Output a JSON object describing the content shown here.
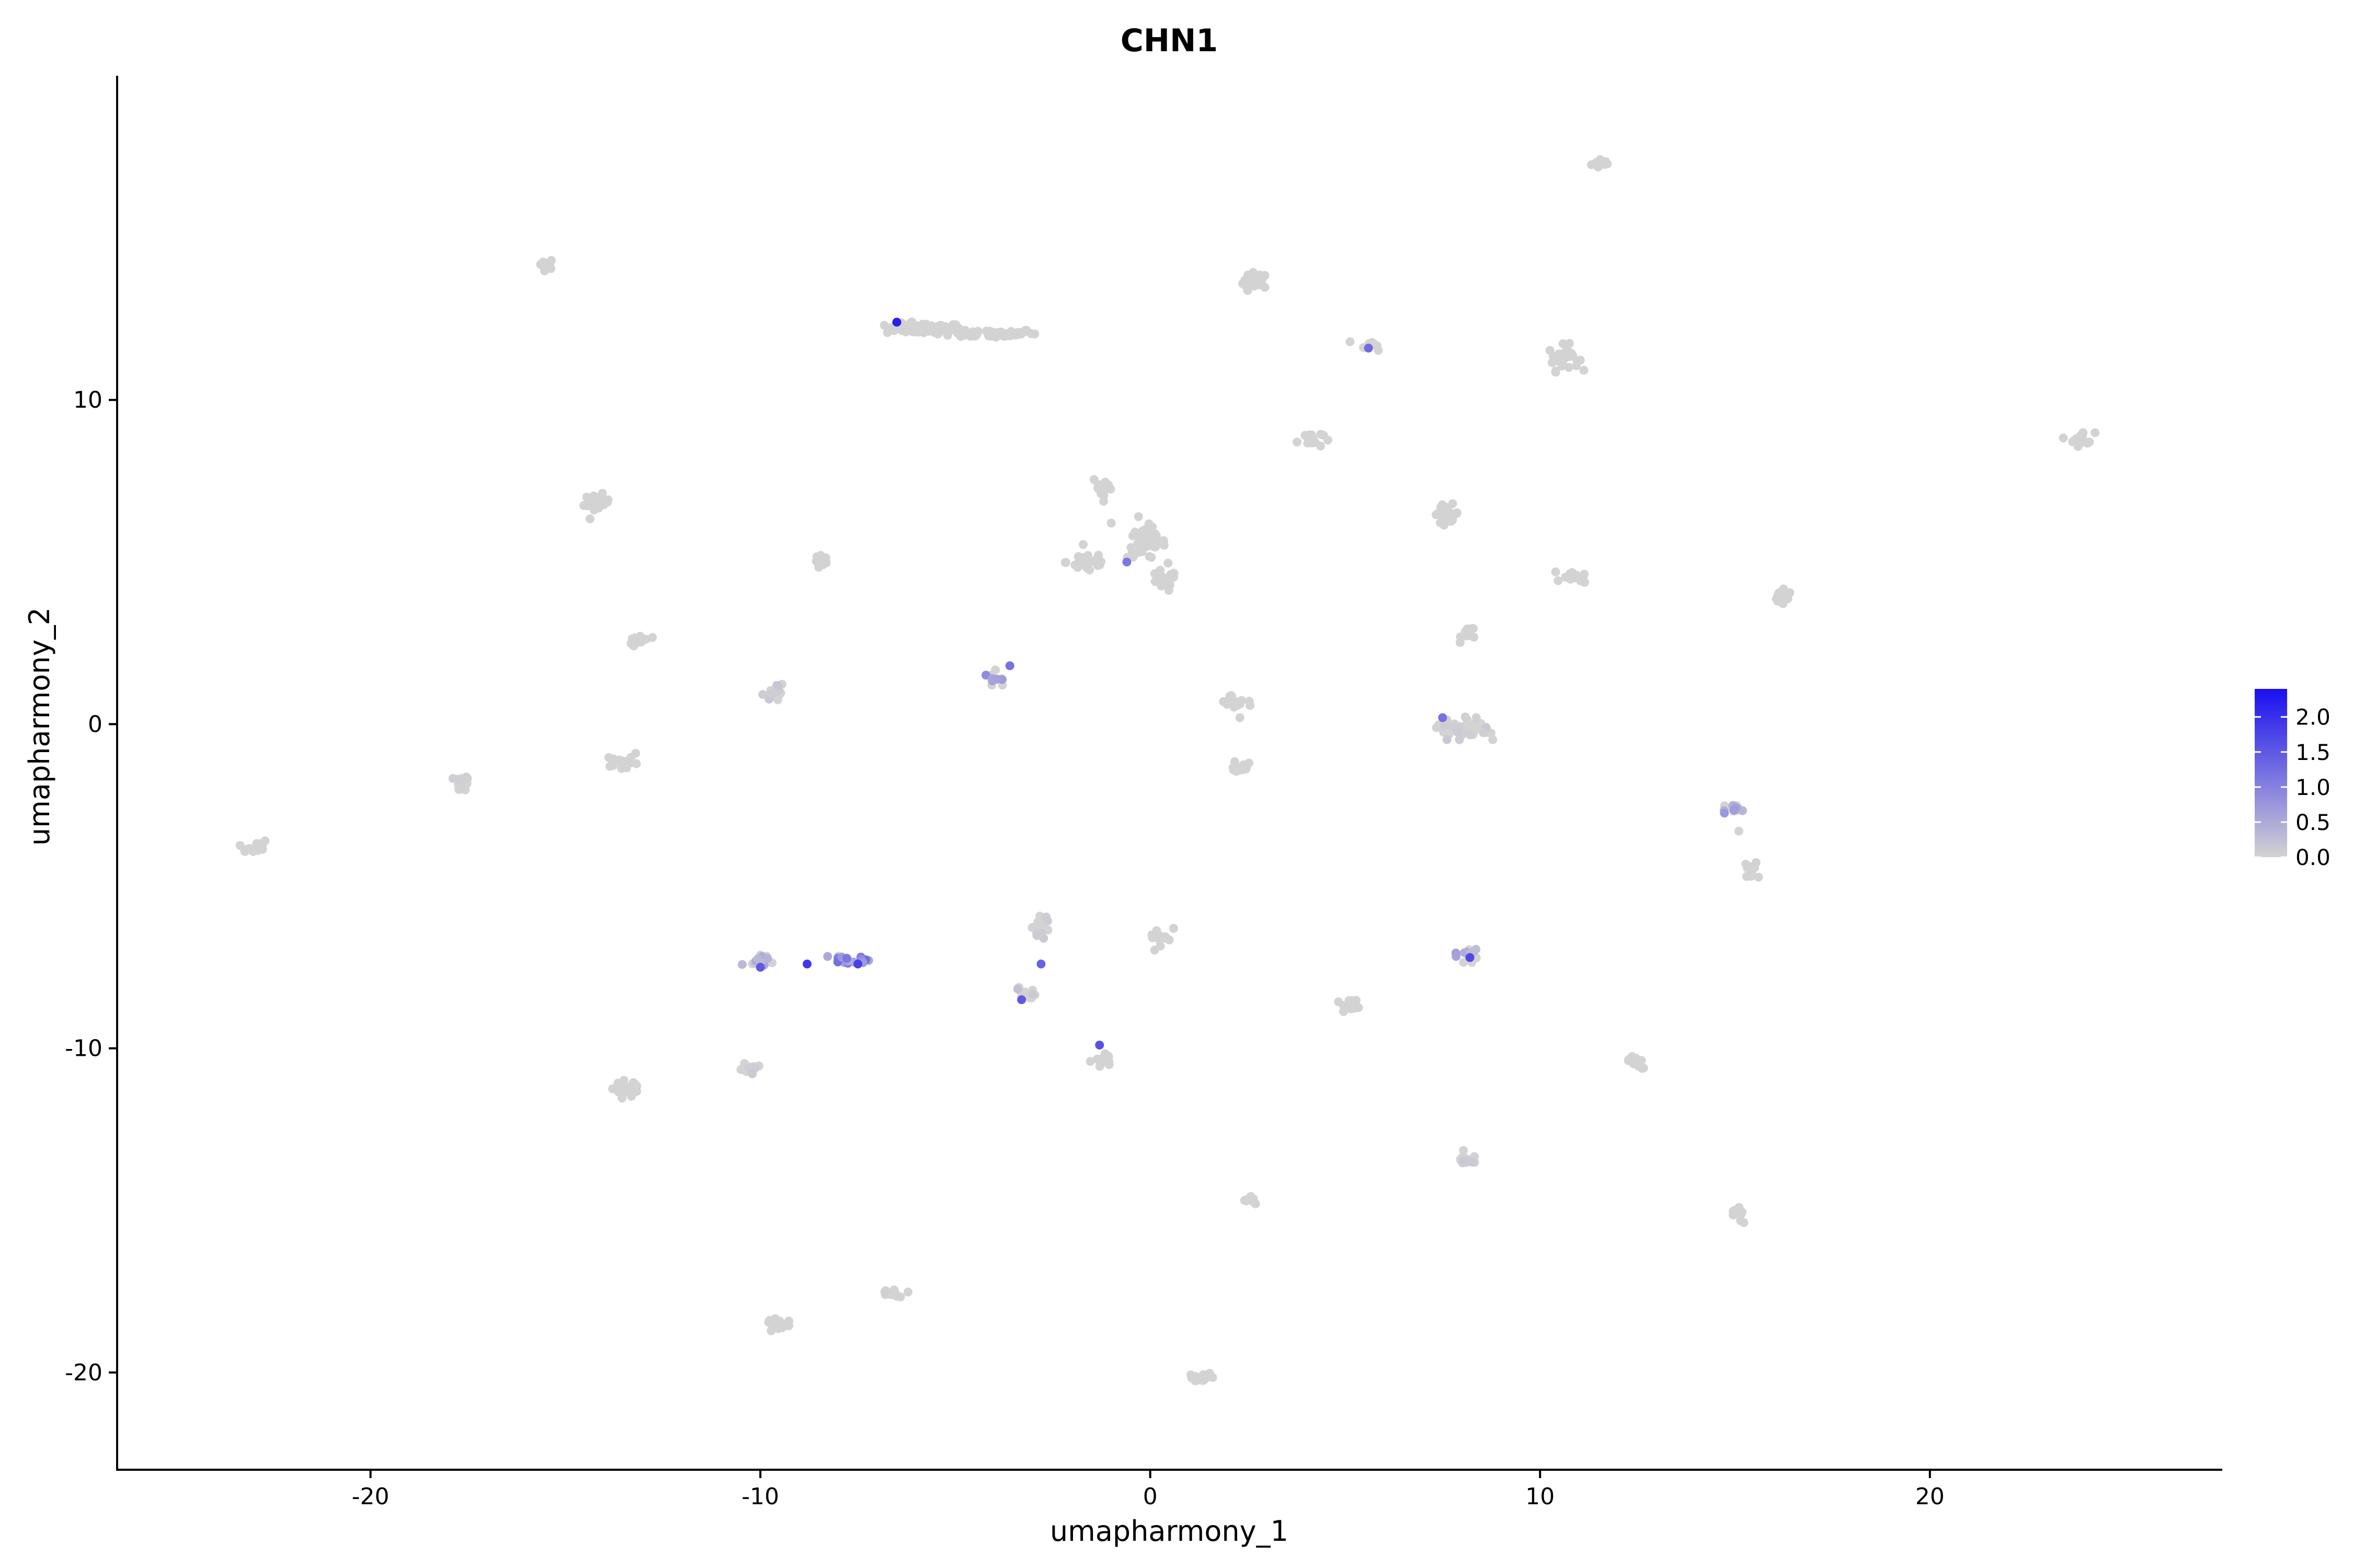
{
  "chart_data": {
    "type": "scatter",
    "title": "CHN1",
    "xlabel": "umapharmony_1",
    "ylabel": "umapharmony_2",
    "xlim": [
      -26.5,
      27.5
    ],
    "ylim": [
      -23,
      20
    ],
    "xticks": [
      -20,
      -10,
      0,
      10,
      20
    ],
    "yticks": [
      -20,
      -10,
      0,
      10
    ],
    "grid": false,
    "legend_position": "right",
    "colorbar": {
      "min": 0.0,
      "max": 2.4,
      "low_color": "#d3d3d3",
      "high_color": "#1a0ff0",
      "labels": [
        "2.0",
        "1.5",
        "1.0",
        "0.5",
        "0.0"
      ],
      "label_values": [
        2.0,
        1.5,
        1.0,
        0.5,
        0.0
      ]
    },
    "clusters": [
      {
        "x": 11.6,
        "y": 17.3,
        "rx": 0.25,
        "ry": 0.15,
        "n": 12,
        "expr": 0
      },
      {
        "x": -15.5,
        "y": 14.2,
        "rx": 0.2,
        "ry": 0.15,
        "n": 10,
        "expr": 0
      },
      {
        "x": 2.7,
        "y": 13.6,
        "rx": 0.3,
        "ry": 0.3,
        "n": 20,
        "expr": 0
      },
      {
        "x": -5.8,
        "y": 12.2,
        "rx": 0.9,
        "ry": 0.15,
        "n": 70,
        "expr": 0
      },
      {
        "x": -4.0,
        "y": 12.05,
        "rx": 1.0,
        "ry": 0.12,
        "n": 60,
        "expr": 0
      },
      {
        "x": 5.7,
        "y": 11.7,
        "rx": 0.3,
        "ry": 0.15,
        "n": 10,
        "expr": 0
      },
      {
        "x": 10.6,
        "y": 11.3,
        "rx": 0.35,
        "ry": 0.35,
        "n": 30,
        "expr": 0
      },
      {
        "x": 4.1,
        "y": 8.8,
        "rx": 0.3,
        "ry": 0.25,
        "n": 18,
        "expr": 0
      },
      {
        "x": 23.9,
        "y": 8.8,
        "rx": 0.3,
        "ry": 0.2,
        "n": 18,
        "expr": 0
      },
      {
        "x": -14.2,
        "y": 6.8,
        "rx": 0.3,
        "ry": 0.25,
        "n": 18,
        "expr": 0
      },
      {
        "x": -1.2,
        "y": 7.3,
        "rx": 0.25,
        "ry": 0.35,
        "n": 18,
        "expr": 0
      },
      {
        "x": 7.6,
        "y": 6.5,
        "rx": 0.3,
        "ry": 0.25,
        "n": 20,
        "expr": 0
      },
      {
        "x": -0.1,
        "y": 5.6,
        "rx": 0.45,
        "ry": 0.45,
        "n": 45,
        "expr": 0
      },
      {
        "x": -1.6,
        "y": 5.0,
        "rx": 0.5,
        "ry": 0.3,
        "n": 30,
        "expr": 0
      },
      {
        "x": 0.3,
        "y": 4.4,
        "rx": 0.35,
        "ry": 0.3,
        "n": 20,
        "expr": 0
      },
      {
        "x": -8.4,
        "y": 5.0,
        "rx": 0.2,
        "ry": 0.2,
        "n": 10,
        "expr": 0
      },
      {
        "x": 10.9,
        "y": 4.5,
        "rx": 0.3,
        "ry": 0.15,
        "n": 14,
        "expr": 0
      },
      {
        "x": 16.2,
        "y": 3.9,
        "rx": 0.25,
        "ry": 0.2,
        "n": 14,
        "expr": 0
      },
      {
        "x": 8.2,
        "y": 2.8,
        "rx": 0.2,
        "ry": 0.2,
        "n": 12,
        "expr": 0
      },
      {
        "x": -13.1,
        "y": 2.6,
        "rx": 0.25,
        "ry": 0.2,
        "n": 16,
        "expr": 0
      },
      {
        "x": -3.9,
        "y": 1.4,
        "rx": 0.2,
        "ry": 0.2,
        "n": 12,
        "expr": 0.8
      },
      {
        "x": -9.6,
        "y": 1.0,
        "rx": 0.3,
        "ry": 0.25,
        "n": 18,
        "expr": 0.15
      },
      {
        "x": 2.1,
        "y": 0.7,
        "rx": 0.3,
        "ry": 0.2,
        "n": 18,
        "expr": 0
      },
      {
        "x": 8.0,
        "y": -0.2,
        "rx": 0.6,
        "ry": 0.3,
        "n": 50,
        "expr": 0.1
      },
      {
        "x": -17.7,
        "y": -1.8,
        "rx": 0.25,
        "ry": 0.2,
        "n": 14,
        "expr": 0.05
      },
      {
        "x": -13.6,
        "y": -1.2,
        "rx": 0.3,
        "ry": 0.2,
        "n": 18,
        "expr": 0
      },
      {
        "x": 2.3,
        "y": -1.3,
        "rx": 0.25,
        "ry": 0.2,
        "n": 14,
        "expr": 0
      },
      {
        "x": 14.9,
        "y": -2.6,
        "rx": 0.25,
        "ry": 0.2,
        "n": 14,
        "expr": 0.6
      },
      {
        "x": -23.0,
        "y": -3.8,
        "rx": 0.3,
        "ry": 0.2,
        "n": 16,
        "expr": 0
      },
      {
        "x": 15.4,
        "y": -4.5,
        "rx": 0.2,
        "ry": 0.2,
        "n": 12,
        "expr": 0
      },
      {
        "x": -2.8,
        "y": -6.3,
        "rx": 0.25,
        "ry": 0.3,
        "n": 18,
        "expr": 0.1
      },
      {
        "x": 0.3,
        "y": -6.6,
        "rx": 0.3,
        "ry": 0.2,
        "n": 12,
        "expr": 0
      },
      {
        "x": -10.0,
        "y": -7.3,
        "rx": 0.3,
        "ry": 0.25,
        "n": 20,
        "expr": 0.4
      },
      {
        "x": -7.8,
        "y": -7.3,
        "rx": 0.45,
        "ry": 0.15,
        "n": 18,
        "expr": 1.0
      },
      {
        "x": 8.1,
        "y": -7.1,
        "rx": 0.25,
        "ry": 0.25,
        "n": 14,
        "expr": 0.5
      },
      {
        "x": -3.2,
        "y": -8.3,
        "rx": 0.25,
        "ry": 0.2,
        "n": 12,
        "expr": 0.2
      },
      {
        "x": 5.2,
        "y": -8.7,
        "rx": 0.3,
        "ry": 0.2,
        "n": 16,
        "expr": 0
      },
      {
        "x": -1.2,
        "y": -10.4,
        "rx": 0.25,
        "ry": 0.2,
        "n": 14,
        "expr": 0
      },
      {
        "x": 12.5,
        "y": -10.4,
        "rx": 0.25,
        "ry": 0.2,
        "n": 14,
        "expr": 0
      },
      {
        "x": -10.3,
        "y": -10.6,
        "rx": 0.2,
        "ry": 0.15,
        "n": 12,
        "expr": 0.1
      },
      {
        "x": -13.4,
        "y": -11.3,
        "rx": 0.3,
        "ry": 0.25,
        "n": 18,
        "expr": 0
      },
      {
        "x": 8.1,
        "y": -13.4,
        "rx": 0.25,
        "ry": 0.2,
        "n": 14,
        "expr": 0.1
      },
      {
        "x": 2.6,
        "y": -14.7,
        "rx": 0.2,
        "ry": 0.15,
        "n": 12,
        "expr": 0
      },
      {
        "x": 15.1,
        "y": -15.1,
        "rx": 0.2,
        "ry": 0.2,
        "n": 12,
        "expr": 0
      },
      {
        "x": -6.6,
        "y": -17.6,
        "rx": 0.2,
        "ry": 0.12,
        "n": 10,
        "expr": 0.05
      },
      {
        "x": -9.5,
        "y": -18.5,
        "rx": 0.25,
        "ry": 0.2,
        "n": 14,
        "expr": 0
      },
      {
        "x": 1.3,
        "y": -20.2,
        "rx": 0.25,
        "ry": 0.15,
        "n": 14,
        "expr": 0
      }
    ],
    "points": [
      {
        "x": -6.5,
        "y": 12.4,
        "expr": 2.2
      },
      {
        "x": -8.8,
        "y": -7.4,
        "expr": 1.9
      },
      {
        "x": -1.3,
        "y": -9.9,
        "expr": 1.6
      },
      {
        "x": -3.6,
        "y": 1.8,
        "expr": 1.2
      },
      {
        "x": -2.8,
        "y": -7.4,
        "expr": 1.4
      },
      {
        "x": -3.3,
        "y": -8.5,
        "expr": 1.5
      },
      {
        "x": 8.2,
        "y": -7.2,
        "expr": 1.7
      },
      {
        "x": -7.5,
        "y": -7.4,
        "expr": 1.8
      },
      {
        "x": -10.0,
        "y": -7.5,
        "expr": 1.5
      },
      {
        "x": 5.6,
        "y": 11.6,
        "expr": 1.3
      },
      {
        "x": -0.6,
        "y": 5.0,
        "expr": 1.1
      },
      {
        "x": 7.5,
        "y": 0.2,
        "expr": 1.2
      },
      {
        "x": 10.4,
        "y": 4.7,
        "expr": 0
      },
      {
        "x": 15.1,
        "y": -3.3,
        "expr": 0
      },
      {
        "x": 2.3,
        "y": 0.2,
        "expr": 0
      },
      {
        "x": -13.2,
        "y": -0.9,
        "expr": 0
      },
      {
        "x": -1.0,
        "y": 6.2,
        "expr": 0
      },
      {
        "x": -0.3,
        "y": 6.4,
        "expr": 0
      },
      {
        "x": 0.6,
        "y": -6.3,
        "expr": 0
      }
    ]
  }
}
